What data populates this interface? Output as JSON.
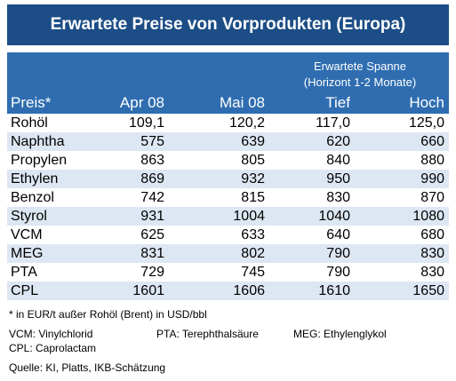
{
  "header": {
    "title": "Erwartete Preise von Vorprodukten (Europa)",
    "spanne": "Erwartete Spanne",
    "horizont": "(Horizont 1-2 Monate)",
    "columns": [
      "Preis*",
      "Apr 08",
      "Mai 08",
      "Tief",
      "Hoch"
    ]
  },
  "table": {
    "rows": [
      [
        "Rohöl",
        "109,1",
        "120,2",
        "117,0",
        "125,0"
      ],
      [
        "Naphtha",
        "575",
        "639",
        "620",
        "660"
      ],
      [
        "Propylen",
        "863",
        "805",
        "840",
        "880"
      ],
      [
        "Ethylen",
        "869",
        "932",
        "950",
        "990"
      ],
      [
        "Benzol",
        "742",
        "815",
        "830",
        "870"
      ],
      [
        "Styrol",
        "931",
        "1004",
        "1040",
        "1080"
      ],
      [
        "VCM",
        "625",
        "633",
        "640",
        "680"
      ],
      [
        "MEG",
        "831",
        "802",
        "790",
        "830"
      ],
      [
        "PTA",
        "729",
        "745",
        "790",
        "830"
      ],
      [
        "CPL",
        "1601",
        "1606",
        "1610",
        "1650"
      ]
    ]
  },
  "notes": [
    "* in EUR/t außer Rohöl (Brent) in USD/bbl",
    "VCM: Vinylchlorid",
    "PTA: Terephthalsäure",
    "MEG: Ethylenglykol",
    "CPL: Caprolactam",
    "Quelle: KI, Platts, IKB-Schätzung"
  ]
}
